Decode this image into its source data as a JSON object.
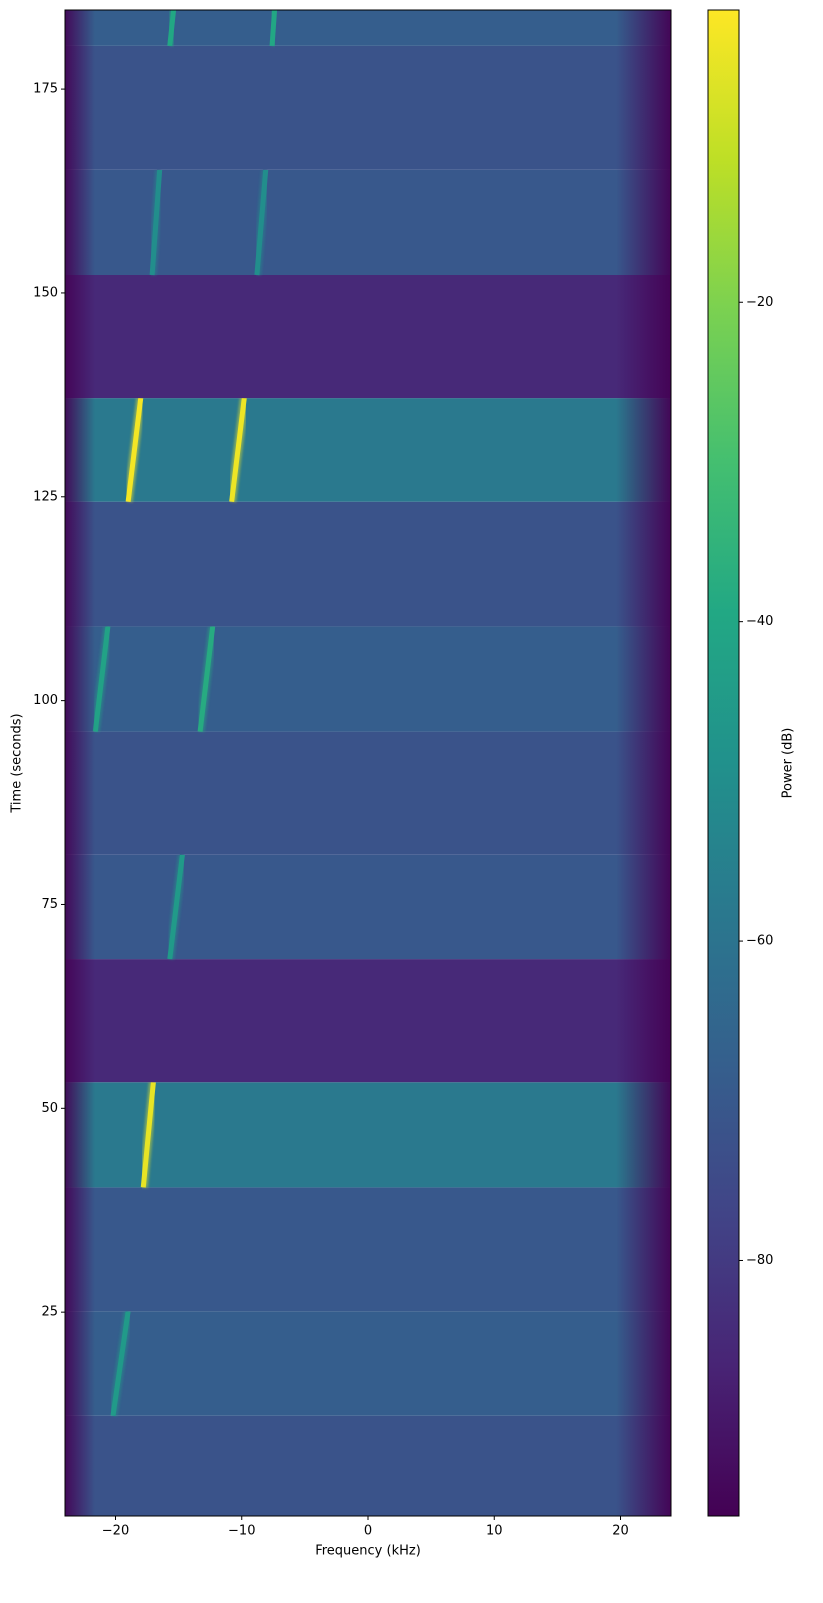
{
  "chart_data": {
    "type": "spectrogram",
    "xlabel": "Frequency (kHz)",
    "ylabel": "Time (seconds)",
    "colorbar_label": "Power (dB)",
    "colormap": "viridis",
    "xlim": [
      -24,
      24
    ],
    "xticks": [
      {
        "value": -20,
        "label": "−20"
      },
      {
        "value": -10,
        "label": "−10"
      },
      0,
      10,
      20
    ],
    "ylim": [
      0,
      184.7
    ],
    "yticks": [
      25,
      50,
      75,
      100,
      125,
      150,
      175
    ],
    "clim": [
      -96,
      -1.7
    ],
    "cticks": [
      {
        "value": -20,
        "label": "−20"
      },
      {
        "value": -40,
        "label": "−40"
      },
      {
        "value": -60,
        "label": "−60"
      },
      {
        "value": -80,
        "label": "−80"
      }
    ],
    "segments": [
      {
        "t": [
          0,
          12.3
        ],
        "power": -72,
        "tones": []
      },
      {
        "t": [
          12.3,
          25.1
        ],
        "power": -68,
        "tones": [
          {
            "f": [
              -20.2,
              -19.0
            ],
            "power": -45
          }
        ]
      },
      {
        "t": [
          25.1,
          40.3
        ],
        "power": -70,
        "tones": []
      },
      {
        "t": [
          40.3,
          53.2
        ],
        "power": -58,
        "tones": [
          {
            "f": [
              -17.8,
              -17.0
            ],
            "power": -5
          }
        ]
      },
      {
        "t": [
          53.2,
          68.3
        ],
        "power": -85,
        "tones": []
      },
      {
        "t": [
          68.3,
          81.1
        ],
        "power": -70,
        "tones": [
          {
            "f": [
              -15.7,
              -14.7
            ],
            "power": -45
          }
        ]
      },
      {
        "t": [
          81.1,
          96.2
        ],
        "power": -72,
        "tones": []
      },
      {
        "t": [
          96.2,
          109.1
        ],
        "power": -68,
        "tones": [
          {
            "f": [
              -21.6,
              -20.6
            ],
            "power": -42
          },
          {
            "f": [
              -13.3,
              -12.3
            ],
            "power": -38
          }
        ]
      },
      {
        "t": [
          109.1,
          124.4
        ],
        "power": -72,
        "tones": []
      },
      {
        "t": [
          124.4,
          137.1
        ],
        "power": -58,
        "tones": [
          {
            "f": [
              -19.0,
              -18.0
            ],
            "power": -3
          },
          {
            "f": [
              -10.8,
              -9.8
            ],
            "power": -4
          }
        ]
      },
      {
        "t": [
          137.1,
          152.2
        ],
        "power": -85,
        "tones": []
      },
      {
        "t": [
          152.2,
          165.1
        ],
        "power": -70,
        "tones": [
          {
            "f": [
              -17.1,
              -16.5
            ],
            "power": -50
          },
          {
            "f": [
              -8.8,
              -8.1
            ],
            "power": -50
          }
        ]
      },
      {
        "t": [
          165.1,
          180.3
        ],
        "power": -72,
        "tones": []
      },
      {
        "t": [
          180.3,
          184.7
        ],
        "power": -68,
        "tones": [
          {
            "f": [
              -15.7,
              -15.4
            ],
            "power": -40
          },
          {
            "f": [
              -7.6,
              -7.4
            ],
            "power": -40
          }
        ]
      }
    ]
  }
}
